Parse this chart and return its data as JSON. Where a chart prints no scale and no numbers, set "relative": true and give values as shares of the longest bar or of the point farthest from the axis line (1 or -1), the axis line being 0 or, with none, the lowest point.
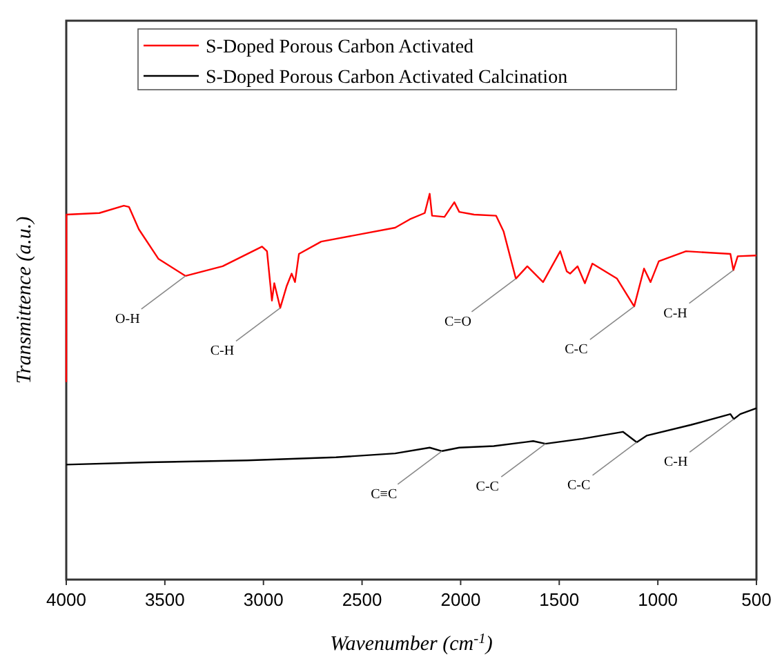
{
  "chart_data": {
    "type": "line",
    "relative": true,
    "xlabel": "Wavenumber (cm$^{-1}$)",
    "ylabel": "Transmittence (a.u.)",
    "xlim": [
      4000,
      500
    ],
    "xticks": [
      4000,
      3500,
      3000,
      2500,
      2000,
      1500,
      1000,
      500
    ],
    "legend": "top",
    "grid": false,
    "line_style": "solid",
    "marker": "none",
    "series": [
      {
        "name": "S-Doped Porous Carbon Activated",
        "color": "#ff0000",
        "x": [
          4000,
          3999,
          3832,
          3708,
          3682,
          3632,
          3532,
          3395,
          3207,
          3007,
          2982,
          2957,
          2945,
          2915,
          2882,
          2857,
          2840,
          2820,
          2707,
          2332,
          2257,
          2182,
          2157,
          2145,
          2082,
          2032,
          2007,
          1932,
          1820,
          1782,
          1720,
          1662,
          1582,
          1495,
          1462,
          1445,
          1407,
          1370,
          1332,
          1207,
          1120,
          1070,
          1037,
          995,
          857,
          632,
          617,
          595,
          500
        ],
        "values": [
          0.512,
          0.946,
          0.95,
          0.969,
          0.966,
          0.908,
          0.831,
          0.787,
          0.812,
          0.863,
          0.851,
          0.723,
          0.768,
          0.704,
          0.761,
          0.793,
          0.771,
          0.844,
          0.876,
          0.912,
          0.934,
          0.95,
          1.0,
          0.943,
          0.94,
          0.978,
          0.953,
          0.946,
          0.943,
          0.902,
          0.78,
          0.812,
          0.771,
          0.851,
          0.799,
          0.793,
          0.812,
          0.768,
          0.819,
          0.78,
          0.708,
          0.806,
          0.771,
          0.825,
          0.851,
          0.844,
          0.802,
          0.838,
          0.84
        ]
      },
      {
        "name": "S-Doped Porous Carbon Activated Calcination",
        "color": "#000000",
        "x": [
          4000,
          3582,
          3082,
          2632,
          2332,
          2157,
          2095,
          2007,
          1832,
          1632,
          1570,
          1382,
          1177,
          1107,
          1057,
          832,
          632,
          615,
          582,
          500
        ],
        "values": [
          0.298,
          0.304,
          0.309,
          0.317,
          0.327,
          0.342,
          0.333,
          0.342,
          0.346,
          0.359,
          0.352,
          0.365,
          0.383,
          0.356,
          0.373,
          0.401,
          0.429,
          0.416,
          0.429,
          0.444
        ]
      }
    ],
    "annotations": [
      {
        "text": "O-H",
        "x": 3395,
        "y": 0.787
      },
      {
        "text": "C-H",
        "x": 2915,
        "y": 0.704
      },
      {
        "text": "C=O",
        "x": 1720,
        "y": 0.78
      },
      {
        "text": "C-C",
        "x": 1120,
        "y": 0.708
      },
      {
        "text": "C-H",
        "x": 617,
        "y": 0.802
      },
      {
        "text": "C≡C",
        "x": 2095,
        "y": 0.333
      },
      {
        "text": "C-C",
        "x": 1570,
        "y": 0.352
      },
      {
        "text": "C-C",
        "x": 1107,
        "y": 0.356
      },
      {
        "text": "C-H",
        "x": 615,
        "y": 0.416
      }
    ]
  }
}
